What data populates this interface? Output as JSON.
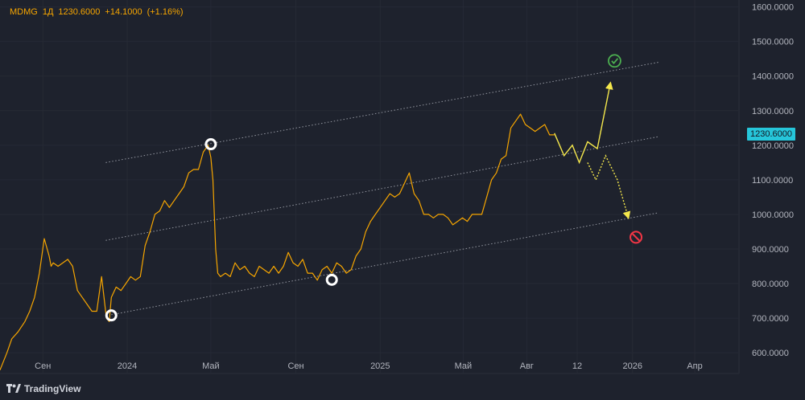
{
  "header": {
    "symbol": "MDMG",
    "interval": "1Д",
    "price": "1230.6000",
    "change": "+14.1000",
    "change_pct": "(+1.16%)"
  },
  "last_price_label": "1230.6000",
  "branding": {
    "name": "TradingView"
  },
  "colors": {
    "background": "#1e222d",
    "price_line": "#f7a600",
    "projection": "#f5e84c",
    "channel": "#b2b5be",
    "axis_text": "#b2b5be",
    "last_price_bg": "#26c6da",
    "target_icon": "#4caf50",
    "stop_icon": "#f23645"
  },
  "chart_data": {
    "type": "line",
    "ylim": [
      540,
      1620
    ],
    "y_ticks": [
      600,
      700,
      800,
      900,
      1000,
      1100,
      1200,
      1300,
      1400,
      1500,
      1600
    ],
    "y_tick_labels": [
      "600.0000",
      "700.0000",
      "800.0000",
      "900.0000",
      "1000.0000",
      "1100.0000",
      "1200.0000",
      "1300.0000",
      "1400.0000",
      "1500.0000",
      "1600.0000"
    ],
    "xlim": [
      "2023-07-01",
      "2026-06-04"
    ],
    "x_ticks": [
      {
        "date": "2023-09-01",
        "label": "Сен"
      },
      {
        "date": "2024-01-01",
        "label": "2024"
      },
      {
        "date": "2024-05-01",
        "label": "Май"
      },
      {
        "date": "2024-09-01",
        "label": "Сен"
      },
      {
        "date": "2025-01-01",
        "label": "2025"
      },
      {
        "date": "2025-05-01",
        "label": "Май"
      },
      {
        "date": "2025-08-01",
        "label": "Авг"
      },
      {
        "date": "2025-10-13",
        "label": "12"
      },
      {
        "date": "2026-01-01",
        "label": "2026"
      },
      {
        "date": "2026-04-01",
        "label": "Апр"
      }
    ],
    "series": [
      {
        "x": [
          "2023-07-01",
          "2023-07-11",
          "2023-07-18",
          "2023-07-27",
          "2023-08-06",
          "2023-08-13",
          "2023-08-20",
          "2023-08-27",
          "2023-09-03",
          "2023-09-10",
          "2023-09-13",
          "2023-09-16",
          "2023-09-23",
          "2023-09-30",
          "2023-10-07",
          "2023-10-14",
          "2023-10-21",
          "2023-10-28",
          "2023-11-04",
          "2023-11-11",
          "2023-11-18",
          "2023-11-25",
          "2023-12-02",
          "2023-12-06",
          "2023-12-09",
          "2023-12-16",
          "2023-12-23",
          "2023-12-30",
          "2024-01-06",
          "2024-01-13",
          "2024-01-20",
          "2024-01-27",
          "2024-02-03",
          "2024-02-10",
          "2024-02-17",
          "2024-02-24",
          "2024-03-02",
          "2024-03-09",
          "2024-03-16",
          "2024-03-23",
          "2024-03-30",
          "2024-04-06",
          "2024-04-13",
          "2024-04-20",
          "2024-04-27",
          "2024-05-01",
          "2024-05-04",
          "2024-05-08",
          "2024-05-11",
          "2024-05-15",
          "2024-05-22",
          "2024-05-29",
          "2024-06-05",
          "2024-06-12",
          "2024-06-19",
          "2024-06-26",
          "2024-07-03",
          "2024-07-10",
          "2024-07-17",
          "2024-07-24",
          "2024-07-31",
          "2024-08-07",
          "2024-08-14",
          "2024-08-21",
          "2024-08-28",
          "2024-09-04",
          "2024-09-11",
          "2024-09-18",
          "2024-09-25",
          "2024-10-02",
          "2024-10-09",
          "2024-10-16",
          "2024-10-23",
          "2024-10-30",
          "2024-11-06",
          "2024-11-13",
          "2024-11-20",
          "2024-11-27",
          "2024-12-04",
          "2024-12-11",
          "2024-12-18",
          "2024-12-25",
          "2025-01-01",
          "2025-01-08",
          "2025-01-15",
          "2025-01-22",
          "2025-01-29",
          "2025-02-05",
          "2025-02-12",
          "2025-02-19",
          "2025-02-26",
          "2025-03-05",
          "2025-03-12",
          "2025-03-19",
          "2025-03-26",
          "2025-04-02",
          "2025-04-09",
          "2025-04-16",
          "2025-04-23",
          "2025-04-30",
          "2025-05-07",
          "2025-05-14",
          "2025-05-21",
          "2025-05-28",
          "2025-06-04",
          "2025-06-11",
          "2025-06-18",
          "2025-06-25",
          "2025-07-02",
          "2025-07-09",
          "2025-07-16",
          "2025-07-23",
          "2025-07-30",
          "2025-08-06",
          "2025-08-13",
          "2025-08-20",
          "2025-08-27",
          "2025-09-03",
          "2025-09-10"
        ],
        "y": [
          550,
          600,
          640,
          660,
          690,
          720,
          760,
          830,
          930,
          880,
          850,
          860,
          850,
          860,
          870,
          850,
          780,
          760,
          740,
          720,
          720,
          820,
          700,
          690,
          760,
          790,
          780,
          800,
          820,
          810,
          820,
          910,
          950,
          1000,
          1010,
          1040,
          1020,
          1040,
          1060,
          1080,
          1120,
          1130,
          1130,
          1180,
          1200,
          1165,
          1100,
          900,
          830,
          820,
          830,
          820,
          860,
          840,
          850,
          830,
          820,
          850,
          840,
          830,
          850,
          830,
          850,
          890,
          860,
          850,
          870,
          830,
          830,
          810,
          840,
          850,
          830,
          860,
          850,
          830,
          840,
          880,
          900,
          950,
          980,
          1000,
          1020,
          1040,
          1060,
          1050,
          1060,
          1090,
          1120,
          1060,
          1040,
          1000,
          1000,
          990,
          1000,
          1000,
          990,
          970,
          980,
          990,
          980,
          1000,
          1000,
          1000,
          1050,
          1100,
          1120,
          1160,
          1170,
          1250,
          1270,
          1290,
          1260,
          1250,
          1240,
          1250,
          1260,
          1230,
          1230
        ]
      },
      {
        "x": [
          "2025-09-10",
          "2025-09-24",
          "2025-10-06",
          "2025-10-16",
          "2025-10-28",
          "2025-11-11",
          "2025-11-30"
        ],
        "y": [
          1235,
          1170,
          1200,
          1150,
          1210,
          1190,
          1380
        ]
      },
      {
        "x": [
          "2025-10-28",
          "2025-11-09",
          "2025-11-23",
          "2025-12-10",
          "2025-12-26"
        ],
        "y": [
          1150,
          1100,
          1170,
          1100,
          990
        ]
      }
    ],
    "channel_lines": [
      {
        "x": [
          "2023-12-01",
          "2026-02-08"
        ],
        "y": [
          1150,
          1440
        ]
      },
      {
        "x": [
          "2023-12-01",
          "2026-02-08"
        ],
        "y": [
          925,
          1225
        ]
      },
      {
        "x": [
          "2023-12-09",
          "2026-02-08"
        ],
        "y": [
          710,
          1005
        ]
      }
    ],
    "circle_markers": [
      {
        "x": "2023-12-09",
        "y": 708
      },
      {
        "x": "2024-05-01",
        "y": 1203
      },
      {
        "x": "2024-10-23",
        "y": 811
      }
    ],
    "status_markers": [
      {
        "type": "target",
        "x": "2025-12-06",
        "y": 1444
      },
      {
        "type": "stop",
        "x": "2026-01-06",
        "y": 934
      }
    ]
  }
}
